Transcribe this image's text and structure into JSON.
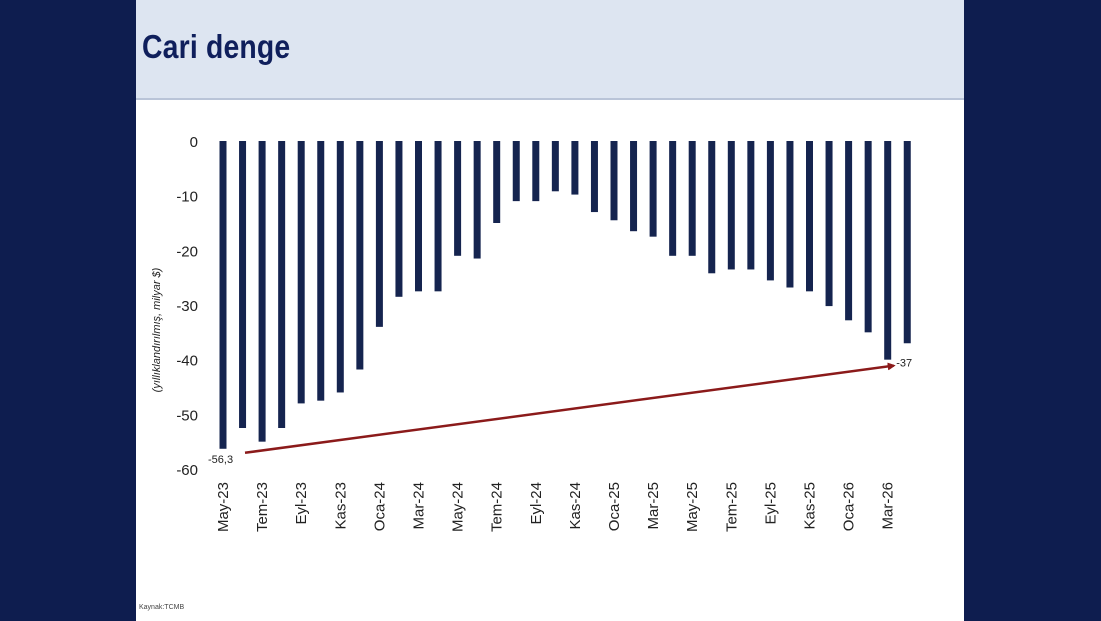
{
  "slide": {
    "title": "Cari denge",
    "source": "Kaynak:TCMB"
  },
  "colors": {
    "frame": "#0e1d4f",
    "bar": "#15244f",
    "arrow": "#8b1a1a",
    "header_bg": "#dde5f1"
  },
  "chart_data": {
    "type": "bar",
    "title": "",
    "ylabel": "(yıllıklandırılmış, milyar $)",
    "ylim": [
      -60,
      0
    ],
    "yticks": [
      0,
      -10,
      -20,
      -30,
      -40,
      -50,
      -60
    ],
    "grid": false,
    "categories": [
      "May-23",
      "Haz-23",
      "Tem-23",
      "Ağu-23",
      "Eyl-23",
      "Eki-23",
      "Kas-23",
      "Ara-23",
      "Oca-24",
      "Şub-24",
      "Mar-24",
      "Nis-24",
      "May-24",
      "Haz-24",
      "Tem-24",
      "Ağu-24",
      "Eyl-24",
      "Eki-24",
      "Kas-24",
      "Ara-24",
      "Oca-25",
      "Şub-25",
      "Mar-25",
      "Nis-25",
      "May-25",
      "Haz-25",
      "Tem-25",
      "Ağu-25",
      "Eyl-25",
      "Eki-25",
      "Kas-25",
      "Ara-25",
      "Oca-26",
      "Şub-26",
      "Mar-26",
      "Nis-26"
    ],
    "visible_tick_labels": [
      "May-23",
      "Tem-23",
      "Eyl-23",
      "Kas-23",
      "Oca-24",
      "Mar-24",
      "May-24",
      "Tem-24",
      "Eyl-24",
      "Kas-24",
      "Oca-25",
      "Mar-25",
      "May-25",
      "Tem-25",
      "Eyl-25",
      "Kas-25",
      "Oca-26",
      "Mar-26"
    ],
    "series": [
      {
        "values": [
          -56.3,
          -52.5,
          -55,
          -52.5,
          -48,
          -47.5,
          -46,
          -41.8,
          -34,
          -28.5,
          -27.5,
          -27.5,
          -21,
          -21.5,
          -15,
          -11,
          -11,
          -9.2,
          -9.8,
          -13,
          -14.5,
          -16.5,
          -17.5,
          -21,
          -21,
          -24.2,
          -23.5,
          -23.5,
          -25.5,
          -26.8,
          -27.5,
          -30.2,
          -32.8,
          -35,
          -40,
          -37
        ]
      }
    ],
    "annotations": [
      {
        "text": "-56,3",
        "category": "May-23",
        "value": -56.3
      },
      {
        "text": "-37",
        "category": "Nis-26",
        "value": -37
      }
    ],
    "trend_arrow": {
      "from": {
        "category": "May-23",
        "value": -56.3
      },
      "to": {
        "category": "Mar-26",
        "value": -40
      }
    }
  }
}
